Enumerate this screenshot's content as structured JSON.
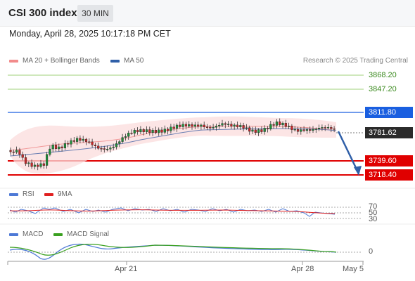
{
  "header": {
    "title": "CSI 300 index",
    "timeframe_label": "30 MIN"
  },
  "datetime": "Monday, April 28, 2025 10:17:18 PM CET",
  "price_panel": {
    "legend": [
      {
        "label": "MA 20 + Bollinger Bands",
        "color": "#f28b8b"
      },
      {
        "label": "MA 50",
        "color": "#2f5fa8"
      }
    ],
    "credit": "Research © 2025 Trading Central",
    "levels": [
      {
        "value": "3868.20",
        "kind": "target",
        "color": "#7cbf4a"
      },
      {
        "value": "3847.20",
        "kind": "target",
        "color": "#7cbf4a"
      },
      {
        "value": "3811.80",
        "kind": "pivot",
        "color": "#1a5fe0"
      },
      {
        "value": "3781.62",
        "kind": "last",
        "color": "#2b2b2b"
      },
      {
        "value": "3739.60",
        "kind": "support",
        "color": "#e00000"
      },
      {
        "value": "3718.40",
        "kind": "support",
        "color": "#e00000"
      }
    ]
  },
  "rsi_panel": {
    "legend": [
      {
        "label": "RSI",
        "color": "#4d79d6"
      },
      {
        "label": "9MA",
        "color": "#e02020"
      }
    ],
    "levels": [
      "70",
      "50",
      "30"
    ]
  },
  "macd_panel": {
    "legend": [
      {
        "label": "MACD",
        "color": "#4d79d6"
      },
      {
        "label": "MACD Signal",
        "color": "#3aa020"
      }
    ],
    "zero_label": "0"
  },
  "x_axis": {
    "ticks": [
      "Apr 21",
      "Apr 28",
      "May 5"
    ]
  }
}
